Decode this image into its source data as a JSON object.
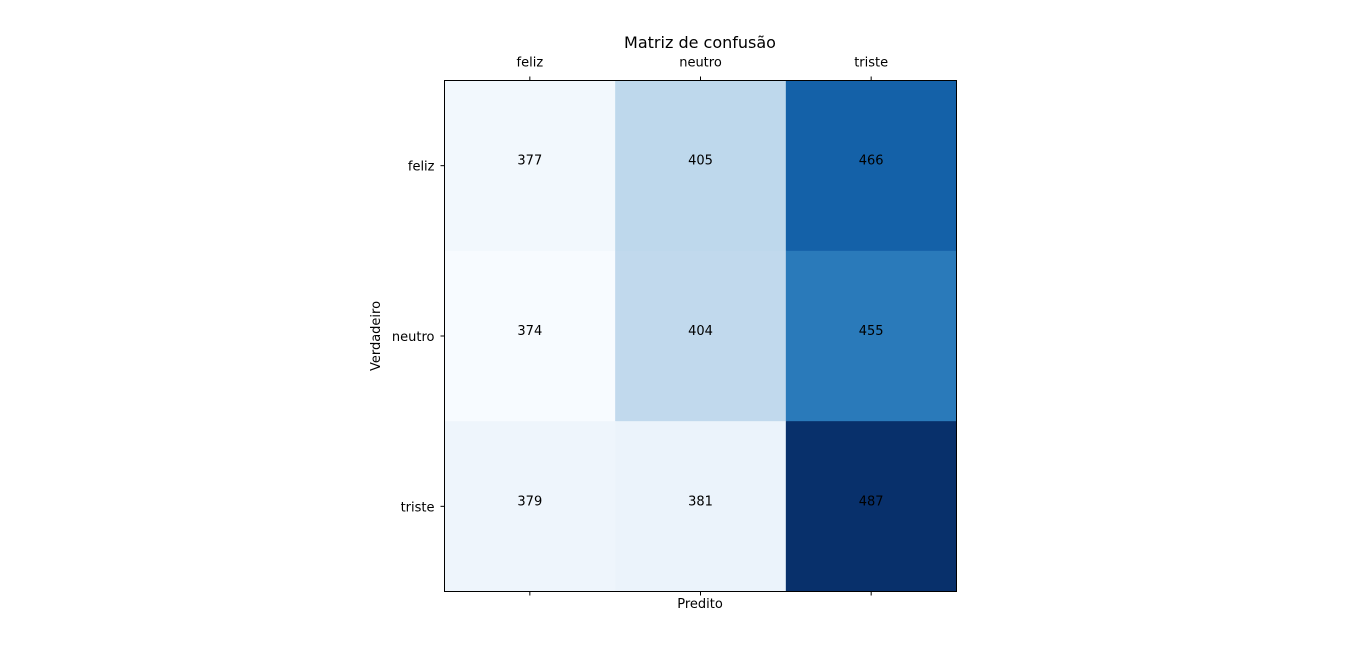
{
  "chart_data": {
    "type": "heatmap",
    "title": "Matriz de confusão",
    "xlabel": "Predito",
    "ylabel": "Verdadeiro",
    "x_categories": [
      "feliz",
      "neutro",
      "triste"
    ],
    "y_categories": [
      "feliz",
      "neutro",
      "triste"
    ],
    "values": [
      [
        377,
        405,
        466
      ],
      [
        374,
        404,
        455
      ],
      [
        379,
        381,
        487
      ]
    ],
    "colormap": "Blues",
    "x_ticks_position": "top",
    "xlabel_position": "bottom",
    "grid": false
  }
}
